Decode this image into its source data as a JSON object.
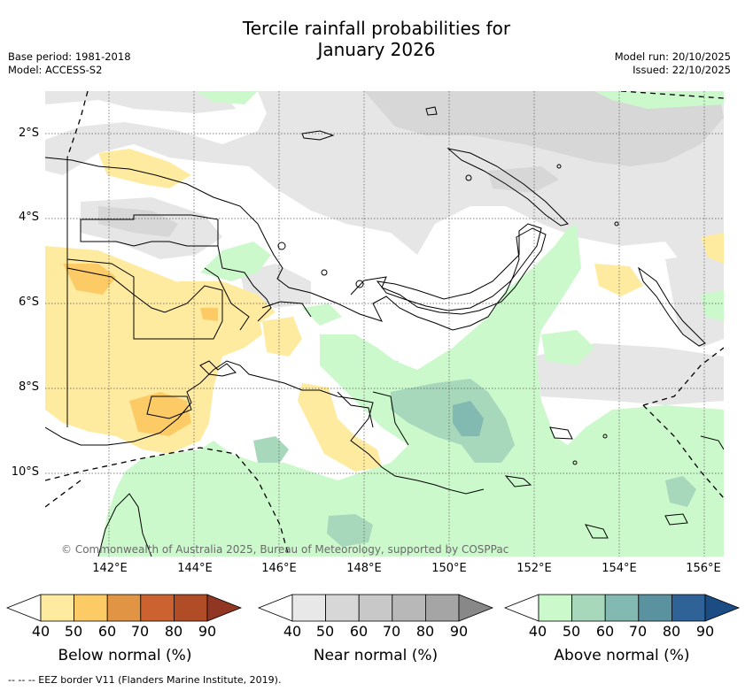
{
  "title_line1": "Tercile rainfall probabilities for",
  "title_line2": "January 2026",
  "meta_left": {
    "base_period": "Base period: 1981-2018",
    "model": "Model: ACCESS-S2"
  },
  "meta_right": {
    "model_run": "Model run: 20/10/2025",
    "issued": "Issued: 22/10/2025"
  },
  "map": {
    "lat_labels": [
      "2°S",
      "4°S",
      "6°S",
      "8°S",
      "10°S"
    ],
    "lon_labels": [
      "142°E",
      "144°E",
      "146°E",
      "148°E",
      "150°E",
      "152°E",
      "154°E",
      "156°E"
    ],
    "credit": "© Commonwealth of Australia 2025, Bureau of Meteorology, supported by COSPPac"
  },
  "colorbars": [
    {
      "label": "Below normal (%)",
      "colors": [
        "#ffffff",
        "#ffeba0",
        "#fdcb66",
        "#e09444",
        "#cc6230",
        "#b04c26",
        "#903622"
      ]
    },
    {
      "label": "Near normal (%)",
      "colors": [
        "#ffffff",
        "#e8e8e8",
        "#d7d7d7",
        "#c8c8c8",
        "#b8b8b8",
        "#a5a5a5",
        "#888888"
      ]
    },
    {
      "label": "Above normal (%)",
      "colors": [
        "#ffffff",
        "#ccf9cc",
        "#a8d8bc",
        "#82b9b1",
        "#5a92a0",
        "#2f6397",
        "#1b4d84"
      ]
    }
  ],
  "colorbar_ticks": [
    "40",
    "50",
    "60",
    "70",
    "80",
    "90"
  ],
  "footer": "--  --  -- EEZ border V11 (Flanders Marine Institute, 2019)."
}
